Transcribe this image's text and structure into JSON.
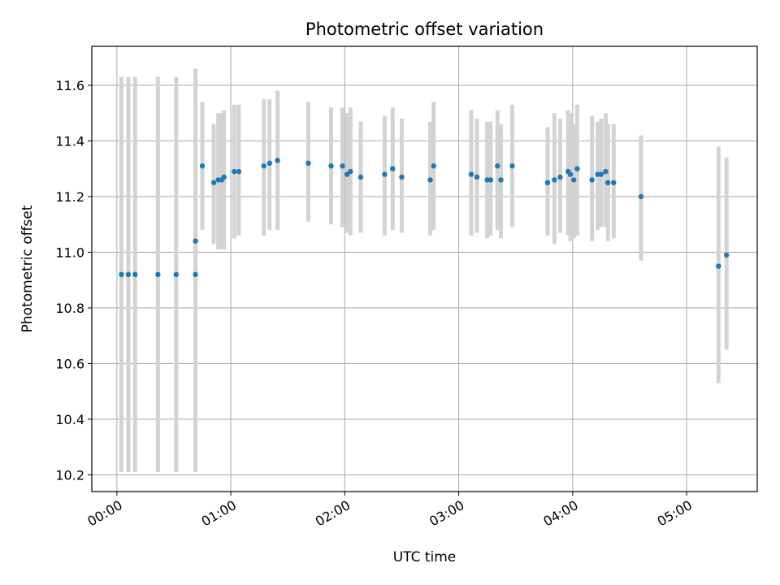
{
  "chart_data": {
    "type": "scatter",
    "title": "Photometric offset variation",
    "xlabel": "UTC time",
    "ylabel": "Photometric offset",
    "x_unit": "hours",
    "xlim": [
      -0.22,
      5.62
    ],
    "ylim": [
      10.14,
      11.74
    ],
    "x_ticks": [
      0,
      1,
      2,
      3,
      4,
      5
    ],
    "x_tick_labels": [
      "00:00",
      "01:00",
      "02:00",
      "03:00",
      "04:00",
      "05:00"
    ],
    "y_ticks": [
      10.2,
      10.4,
      10.6,
      10.8,
      11.0,
      11.2,
      11.4,
      11.6
    ],
    "y_tick_labels": [
      "10.2",
      "10.4",
      "10.6",
      "10.8",
      "11.0",
      "11.2",
      "11.4",
      "11.6"
    ],
    "grid": true,
    "colors": {
      "points": "#1f77b4",
      "error_bars": "#d3d3d3",
      "grid": "#b0b0b0"
    },
    "series": [
      {
        "x": [
          0.04,
          0.1,
          0.16,
          0.36,
          0.52,
          0.69,
          0.69,
          0.75,
          0.85,
          0.89,
          0.92,
          0.94,
          1.03,
          1.07,
          1.29,
          1.34,
          1.41,
          1.68,
          1.88,
          1.98,
          2.02,
          2.05,
          2.14,
          2.35,
          2.42,
          2.5,
          2.75,
          2.78,
          3.11,
          3.16,
          3.25,
          3.28,
          3.34,
          3.37,
          3.47,
          3.78,
          3.84,
          3.89,
          3.96,
          3.98,
          4.01,
          4.04,
          4.17,
          4.22,
          4.25,
          4.29,
          4.31,
          4.36,
          4.6,
          5.28,
          5.35
        ],
        "y": [
          10.92,
          10.92,
          10.92,
          10.92,
          10.92,
          10.92,
          11.04,
          11.31,
          11.25,
          11.26,
          11.26,
          11.27,
          11.29,
          11.29,
          11.31,
          11.32,
          11.33,
          11.32,
          11.31,
          11.31,
          11.28,
          11.29,
          11.27,
          11.28,
          11.3,
          11.27,
          11.26,
          11.31,
          11.28,
          11.27,
          11.26,
          11.26,
          11.31,
          11.26,
          11.31,
          11.25,
          11.26,
          11.27,
          11.29,
          11.28,
          11.26,
          11.3,
          11.26,
          11.28,
          11.28,
          11.29,
          11.25,
          11.25,
          11.2,
          10.95,
          10.99
        ],
        "y_low": [
          10.21,
          10.21,
          10.21,
          10.21,
          10.21,
          10.21,
          10.43,
          11.08,
          11.03,
          11.01,
          11.01,
          11.01,
          11.05,
          11.06,
          11.06,
          11.08,
          11.08,
          11.11,
          11.1,
          11.09,
          11.07,
          11.06,
          11.07,
          11.06,
          11.08,
          11.07,
          11.06,
          11.08,
          11.06,
          11.07,
          11.05,
          11.06,
          11.08,
          11.05,
          11.09,
          11.06,
          11.03,
          11.07,
          11.06,
          11.04,
          11.05,
          11.06,
          11.04,
          11.08,
          11.09,
          11.09,
          11.04,
          11.05,
          10.97,
          10.53,
          10.65
        ],
        "y_high": [
          11.63,
          11.63,
          11.63,
          11.63,
          11.63,
          11.63,
          11.66,
          11.54,
          11.46,
          11.5,
          11.5,
          11.51,
          11.53,
          11.53,
          11.55,
          11.55,
          11.58,
          11.54,
          11.52,
          11.52,
          11.5,
          11.52,
          11.47,
          11.49,
          11.52,
          11.48,
          11.47,
          11.54,
          11.51,
          11.48,
          11.47,
          11.47,
          11.51,
          11.46,
          11.53,
          11.45,
          11.5,
          11.48,
          11.51,
          11.5,
          11.46,
          11.53,
          11.49,
          11.47,
          11.48,
          11.5,
          11.46,
          11.46,
          11.42,
          11.38,
          11.34
        ]
      }
    ]
  }
}
